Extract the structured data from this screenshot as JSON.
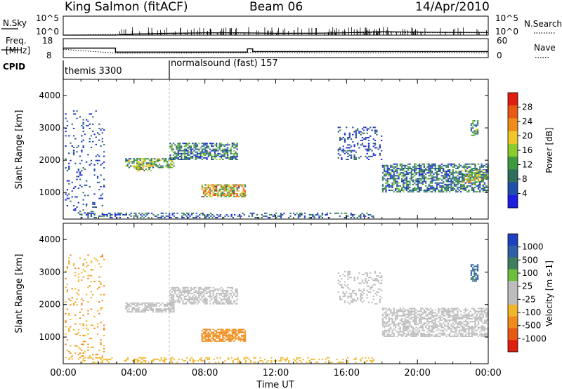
{
  "header": {
    "station": "King Salmon (fitACF)",
    "beam": "Beam 06",
    "date": "14/Apr/2010"
  },
  "noise_panel": {
    "left_label": "N.Sky",
    "right_label": "N.Search",
    "left_ticks": [
      "10^5",
      "10^0"
    ],
    "right_ticks": [
      "10^5",
      "10^0"
    ]
  },
  "freq_panel": {
    "left_label_top": "Freq.",
    "left_label_bottom": "[MHz]",
    "left_ticks": [
      "18",
      "8"
    ],
    "right_label": "Nave",
    "right_ticks": [
      "60",
      "0"
    ]
  },
  "cpid": {
    "label": "CPID",
    "segments": [
      {
        "name": "themis 3300",
        "start_h": 0
      },
      {
        "name": "normalsound (fast) 157",
        "start_h": 6
      }
    ]
  },
  "colors": {
    "power_scale": [
      "#1e1ee0",
      "#1f4fa8",
      "#2f6e5a",
      "#3f9a3f",
      "#8acb2e",
      "#f0c62a",
      "#f08c1c",
      "#e85a14",
      "#e01e10"
    ],
    "velocity_scale": [
      "#1e3fbf",
      "#2f5fa8",
      "#3f7f5f",
      "#6fbf3f",
      "#bdbdbd",
      "#bdbdbd",
      "#f0b62a",
      "#f08a1c",
      "#e85a14",
      "#e01e10"
    ]
  },
  "chart_data": [
    {
      "type": "line",
      "name": "noise-and-search",
      "series": [
        {
          "name": "N.Sky",
          "x": [
            0,
            3,
            4,
            6,
            8,
            10,
            12,
            14,
            16,
            18,
            20,
            22,
            24
          ],
          "y": [
            1,
            1,
            2,
            3,
            4,
            4,
            3,
            3,
            4,
            8,
            6,
            5,
            5
          ]
        },
        {
          "name": "N.Search",
          "x": [
            0,
            4,
            8,
            12,
            16,
            20,
            24
          ],
          "y": [
            1,
            2,
            3,
            3,
            4,
            4,
            4
          ]
        }
      ],
      "xlim": [
        0,
        24
      ],
      "ylim": [
        1,
        100000
      ]
    },
    {
      "type": "line",
      "name": "frequency-and-nave",
      "series": [
        {
          "name": "Freq",
          "x": [
            0,
            2.95,
            2.95,
            10.4,
            10.4,
            10.7,
            10.7,
            24
          ],
          "y": [
            13,
            13,
            10.9,
            10.9,
            12.6,
            12.6,
            11.2,
            11.2
          ]
        },
        {
          "name": "Nave",
          "x": [
            0,
            3,
            6,
            9,
            12,
            15,
            18,
            21,
            24
          ],
          "y": [
            26,
            14,
            14,
            15,
            16,
            15,
            15,
            16,
            15
          ]
        }
      ],
      "xlim": [
        0,
        24
      ],
      "ylim_freq": [
        8,
        18
      ],
      "ylim_nave": [
        0,
        60
      ]
    },
    {
      "type": "heatmap",
      "name": "power",
      "title": "",
      "xlabel": "",
      "ylabel": "Slant Range [km]",
      "xlim": [
        0,
        24
      ],
      "ylim": [
        180,
        4500
      ],
      "y_ticks": [
        1000,
        2000,
        3000,
        4000
      ],
      "colorbar": {
        "label": "Power [dB]",
        "ticks": [
          "4",
          "8",
          "12",
          "16",
          "20",
          "24",
          "28"
        ],
        "range": [
          0,
          30
        ]
      },
      "echo_regions": [
        {
          "x0": 0.1,
          "x1": 2.3,
          "r0": 300,
          "r1": 3500,
          "value": 4,
          "density": 0.1
        },
        {
          "x0": 3.5,
          "x1": 6.2,
          "r0": 1750,
          "r1": 2050,
          "value": 12,
          "density": 0.7
        },
        {
          "x0": 4.0,
          "x1": 5.0,
          "r0": 1650,
          "r1": 1800,
          "value": 16,
          "density": 0.6
        },
        {
          "x0": 6.0,
          "x1": 9.8,
          "r0": 2000,
          "r1": 2500,
          "value": 8,
          "density": 0.6
        },
        {
          "x0": 7.8,
          "x1": 10.3,
          "r0": 850,
          "r1": 1250,
          "value": 18,
          "density": 0.7
        },
        {
          "x0": 1.0,
          "x1": 17.5,
          "r0": 200,
          "r1": 380,
          "value": 6,
          "density": 0.35
        },
        {
          "x0": 15.5,
          "x1": 18.0,
          "r0": 2000,
          "r1": 3000,
          "value": 5,
          "density": 0.25
        },
        {
          "x0": 18.0,
          "x1": 24.0,
          "r0": 1000,
          "r1": 1900,
          "value": 8,
          "density": 0.6
        },
        {
          "x0": 22.5,
          "x1": 23.9,
          "r0": 1300,
          "r1": 1700,
          "value": 14,
          "density": 0.5
        },
        {
          "x0": 23.0,
          "x1": 23.4,
          "r0": 2700,
          "r1": 3200,
          "value": 10,
          "density": 0.6
        }
      ]
    },
    {
      "type": "heatmap",
      "name": "velocity",
      "title": "",
      "xlabel": "Time UT",
      "ylabel": "Slant Range [km]",
      "xlim": [
        0,
        24
      ],
      "ylim": [
        180,
        4500
      ],
      "y_ticks": [
        1000,
        2000,
        3000,
        4000
      ],
      "x_ticks": [
        "00:00",
        "04:00",
        "08:00",
        "12:00",
        "16:00",
        "20:00",
        "00:00"
      ],
      "colorbar": {
        "label": "Velocity [m s-1]",
        "ticks": [
          "1000",
          "500",
          "100",
          "25",
          "-25",
          "-100",
          "-500",
          "-1000"
        ]
      },
      "echo_regions": [
        {
          "x0": 0.1,
          "x1": 2.3,
          "r0": 300,
          "r1": 3500,
          "value": -100,
          "density": 0.1
        },
        {
          "x0": 3.5,
          "x1": 6.2,
          "r0": 1750,
          "r1": 2050,
          "value": 0,
          "density": 0.7
        },
        {
          "x0": 6.0,
          "x1": 9.8,
          "r0": 2000,
          "r1": 2500,
          "value": 0,
          "density": 0.6
        },
        {
          "x0": 7.8,
          "x1": 10.3,
          "r0": 850,
          "r1": 1250,
          "value": -150,
          "density": 0.75
        },
        {
          "x0": 1.0,
          "x1": 17.5,
          "r0": 200,
          "r1": 380,
          "value": -60,
          "density": 0.3
        },
        {
          "x0": 15.5,
          "x1": 18.0,
          "r0": 2000,
          "r1": 3000,
          "value": 0,
          "density": 0.25
        },
        {
          "x0": 18.0,
          "x1": 24.0,
          "r0": 1000,
          "r1": 1900,
          "value": 0,
          "density": 0.6
        },
        {
          "x0": 23.0,
          "x1": 23.4,
          "r0": 2700,
          "r1": 3200,
          "value": 600,
          "density": 0.6
        }
      ]
    }
  ]
}
